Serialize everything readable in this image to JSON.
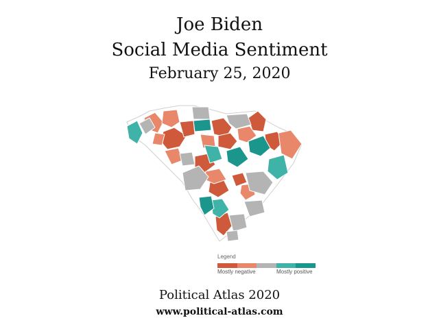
{
  "header": {
    "line1": "Joe Biden",
    "line2": "Social Media Sentiment",
    "line3": "February 25, 2020"
  },
  "legend": {
    "title": "Legend",
    "low_label": "Mostly negative",
    "high_label": "Mostly positive",
    "colors": [
      "#cf5a3b",
      "#e8876a",
      "#b4b4b4",
      "#3fb3a8",
      "#1a968c"
    ]
  },
  "footer": {
    "line1": "Political Atlas 2020",
    "line2": "www.political-atlas.com"
  },
  "map": {
    "region": "South Carolina counties",
    "categories": {
      "mostly_negative": "#cf5a3b",
      "negative": "#e8876a",
      "neutral": "#b4b4b4",
      "positive": "#3fb3a8",
      "mostly_positive": "#1a968c",
      "no_data": "#ffffff"
    }
  }
}
